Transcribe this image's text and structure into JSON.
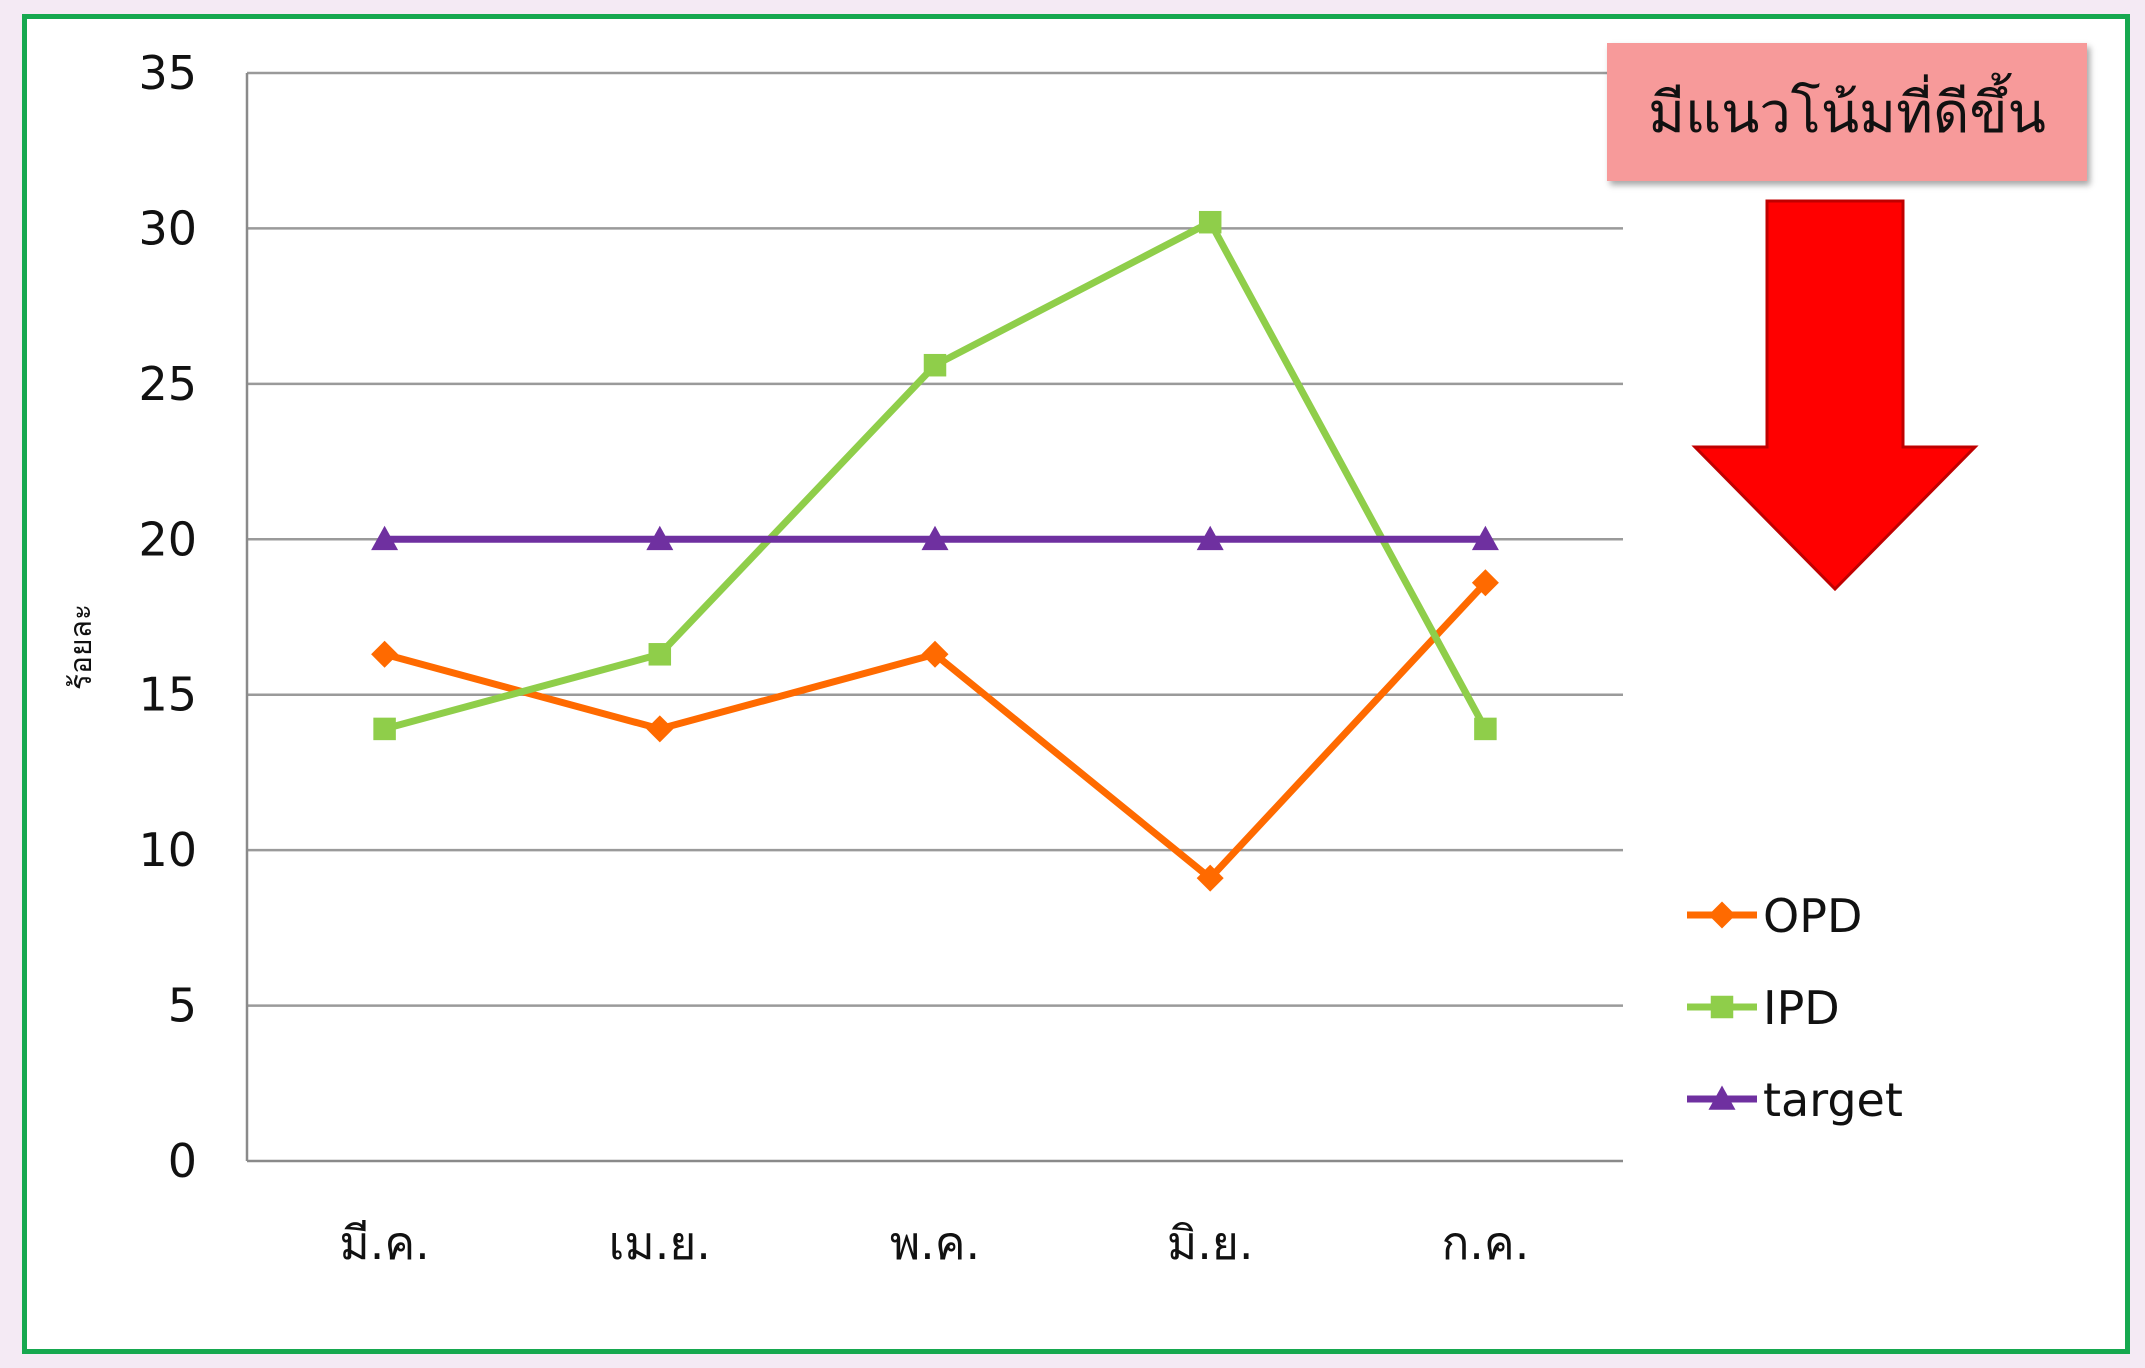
{
  "chart_data": {
    "type": "line",
    "title": "",
    "xlabel": "",
    "ylabel": "ร้อยละ",
    "categories": [
      "มี.ค.",
      "เม.ย.",
      "พ.ค.",
      "มิ.ย.",
      "ก.ค."
    ],
    "ylim": [
      0,
      35
    ],
    "yticks": [
      "0",
      "5",
      "10",
      "15",
      "20",
      "25",
      "30",
      "35"
    ],
    "grid": true,
    "legend_position": "right",
    "series": [
      {
        "name": "OPD",
        "values": [
          16.3,
          13.9,
          16.3,
          9.1,
          18.6
        ],
        "color": "#ff6a00",
        "marker": "diamond"
      },
      {
        "name": "IPD",
        "values": [
          13.9,
          16.3,
          25.6,
          30.2,
          13.9
        ],
        "color": "#8fce4a",
        "marker": "square"
      },
      {
        "name": "target",
        "values": [
          20,
          20,
          20,
          20,
          20
        ],
        "color": "#6f30a0",
        "marker": "triangle"
      }
    ]
  },
  "annotation": {
    "callout_text": "มีแนวโน้มที่ดีขึ้น",
    "arrow_icon": "down-arrow-icon",
    "arrow_color": "#ff0000"
  }
}
